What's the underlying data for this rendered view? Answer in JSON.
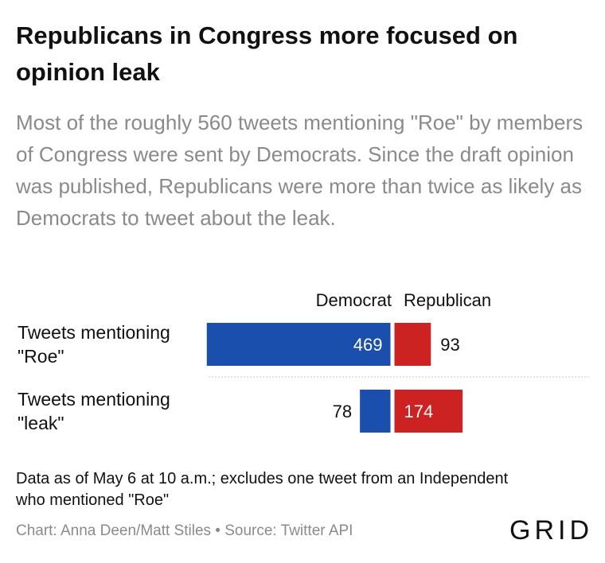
{
  "title": "Republicans in Congress more focused on opinion leak",
  "subtitle": "Most of the roughly 560 tweets mentioning \"Roe\" by members of Congress were sent by Democrats. Since the draft opinion was published, Republicans were more than twice as likely as Democrats to tweet about the leak.",
  "chart_data": {
    "type": "bar",
    "orientation": "diverging-horizontal",
    "categories": [
      [
        "Tweets mentioning",
        "\"Roe\""
      ],
      [
        "Tweets mentioning",
        "\"leak\""
      ]
    ],
    "series": [
      {
        "name": "Democrat",
        "values": [
          469,
          78
        ],
        "color": "#1a4fad"
      },
      {
        "name": "Republican",
        "values": [
          93,
          174
        ],
        "color": "#cc2222"
      }
    ],
    "legend_placement": "top"
  },
  "note": "Data as of May 6 at 10 a.m.; excludes one tweet from an Independent who mentioned \"Roe\"",
  "credit": "Chart: Anna Deen/Matt Stiles • Source: Twitter API",
  "logo": "GRID"
}
